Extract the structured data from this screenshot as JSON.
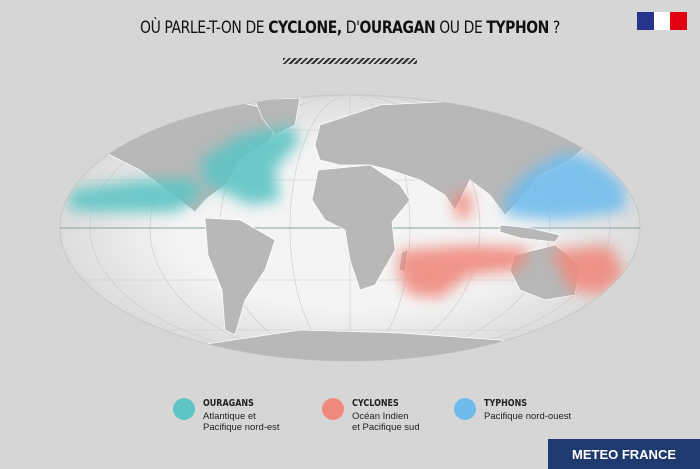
{
  "title": {
    "p1": "OÙ PARLE-T-ON DE ",
    "p2": "CYCLONE,",
    "p3": " D'",
    "p4": "OURAGAN",
    "p5": " OU DE ",
    "p6": "TYPHON",
    "p7": " ?"
  },
  "logo": {
    "name": "republique-francaise-logo",
    "colors": [
      "#27348b",
      "#ffffff",
      "#e1000f"
    ]
  },
  "legend": [
    {
      "title": "OURAGANS",
      "line1": "Atlantique et",
      "line2": "Pacifique nord-est",
      "color": "#5ec4c4"
    },
    {
      "title": "CYCLONES",
      "line1": "Océan Indien",
      "line2": "et Pacifique sud",
      "color": "#f08a7e"
    },
    {
      "title": "TYPHONS",
      "line1": "Pacifique nord-ouest",
      "line2": "",
      "color": "#6fbcec"
    }
  ],
  "brand": "METEO FRANCE"
}
